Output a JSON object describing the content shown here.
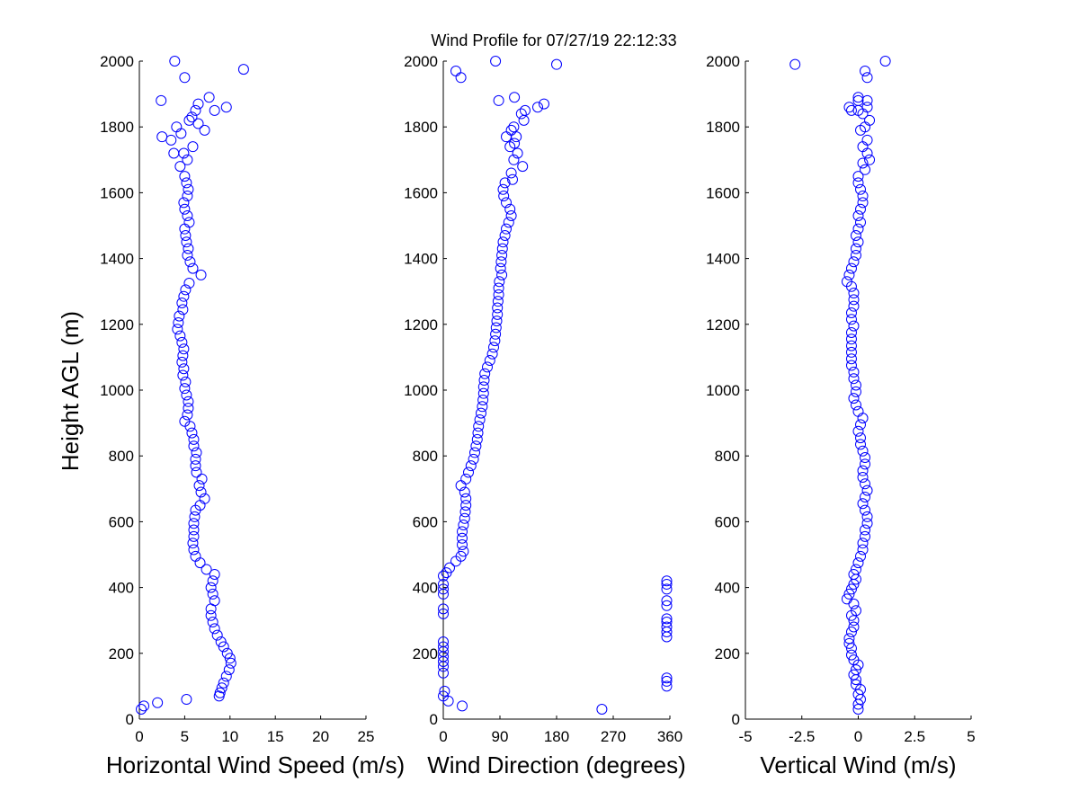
{
  "title": "Wind Profile for  07/27/19 22:12:33",
  "colors": {
    "marker": "#0000ff",
    "axis": "#000000",
    "background": "#ffffff"
  },
  "chart_data": [
    {
      "type": "scatter",
      "xlabel": "Horizontal Wind Speed (m/s)",
      "ylabel": "Height AGL (m)",
      "xlim": [
        0,
        25
      ],
      "ylim": [
        0,
        2000
      ],
      "xticks": [
        "0",
        "5",
        "10",
        "15",
        "20",
        "25"
      ],
      "yticks": [
        "0",
        "200",
        "400",
        "600",
        "800",
        "1000",
        "1200",
        "1400",
        "1600",
        "1800",
        "2000"
      ],
      "points": [
        [
          0.2,
          30
        ],
        [
          0.5,
          40
        ],
        [
          2.0,
          50
        ],
        [
          5.2,
          60
        ],
        [
          8.8,
          70
        ],
        [
          8.9,
          80
        ],
        [
          9.1,
          95
        ],
        [
          9.3,
          110
        ],
        [
          9.6,
          130
        ],
        [
          9.9,
          150
        ],
        [
          10.1,
          170
        ],
        [
          10.0,
          185
        ],
        [
          9.7,
          200
        ],
        [
          9.3,
          220
        ],
        [
          9.0,
          235
        ],
        [
          8.6,
          255
        ],
        [
          8.3,
          275
        ],
        [
          8.1,
          295
        ],
        [
          7.9,
          315
        ],
        [
          7.9,
          335
        ],
        [
          8.3,
          360
        ],
        [
          8.1,
          380
        ],
        [
          7.9,
          400
        ],
        [
          8.1,
          420
        ],
        [
          8.3,
          440
        ],
        [
          7.4,
          455
        ],
        [
          6.7,
          475
        ],
        [
          6.2,
          495
        ],
        [
          6.0,
          515
        ],
        [
          5.9,
          535
        ],
        [
          6.0,
          555
        ],
        [
          6.0,
          575
        ],
        [
          6.0,
          595
        ],
        [
          6.1,
          615
        ],
        [
          6.2,
          635
        ],
        [
          6.7,
          650
        ],
        [
          7.2,
          670
        ],
        [
          6.8,
          690
        ],
        [
          6.6,
          710
        ],
        [
          6.9,
          730
        ],
        [
          6.3,
          750
        ],
        [
          6.2,
          770
        ],
        [
          6.2,
          790
        ],
        [
          6.3,
          810
        ],
        [
          6.0,
          830
        ],
        [
          6.0,
          850
        ],
        [
          5.8,
          870
        ],
        [
          5.6,
          890
        ],
        [
          5.0,
          905
        ],
        [
          5.3,
          925
        ],
        [
          5.4,
          945
        ],
        [
          5.4,
          965
        ],
        [
          5.2,
          985
        ],
        [
          5.0,
          1005
        ],
        [
          5.1,
          1025
        ],
        [
          4.8,
          1045
        ],
        [
          4.9,
          1065
        ],
        [
          4.7,
          1085
        ],
        [
          4.8,
          1105
        ],
        [
          4.9,
          1125
        ],
        [
          4.7,
          1145
        ],
        [
          4.5,
          1165
        ],
        [
          4.2,
          1185
        ],
        [
          4.3,
          1205
        ],
        [
          4.4,
          1225
        ],
        [
          4.8,
          1245
        ],
        [
          4.7,
          1265
        ],
        [
          4.9,
          1285
        ],
        [
          5.1,
          1305
        ],
        [
          5.5,
          1325
        ],
        [
          6.8,
          1350
        ],
        [
          5.9,
          1370
        ],
        [
          5.6,
          1390
        ],
        [
          5.3,
          1410
        ],
        [
          5.4,
          1430
        ],
        [
          5.2,
          1450
        ],
        [
          5.1,
          1470
        ],
        [
          5.0,
          1490
        ],
        [
          5.5,
          1510
        ],
        [
          5.3,
          1530
        ],
        [
          5.0,
          1550
        ],
        [
          4.9,
          1570
        ],
        [
          5.3,
          1590
        ],
        [
          5.4,
          1610
        ],
        [
          5.2,
          1630
        ],
        [
          5.0,
          1650
        ],
        [
          4.5,
          1680
        ],
        [
          5.3,
          1700
        ],
        [
          4.9,
          1720
        ],
        [
          3.8,
          1720
        ],
        [
          3.5,
          1760
        ],
        [
          4.6,
          1780
        ],
        [
          4.1,
          1800
        ],
        [
          5.5,
          1820
        ],
        [
          6.5,
          1810
        ],
        [
          5.9,
          1740
        ],
        [
          2.5,
          1770
        ],
        [
          7.2,
          1790
        ],
        [
          5.8,
          1830
        ],
        [
          6.2,
          1850
        ],
        [
          8.3,
          1850
        ],
        [
          9.6,
          1860
        ],
        [
          7.7,
          1890
        ],
        [
          6.5,
          1870
        ],
        [
          2.4,
          1880
        ],
        [
          5.0,
          1950
        ],
        [
          3.9,
          2000
        ],
        [
          11.5,
          1975
        ]
      ]
    },
    {
      "type": "scatter",
      "xlabel": "Wind Direction (degrees)",
      "ylabel": "",
      "xlim": [
        0,
        360
      ],
      "ylim": [
        0,
        2000
      ],
      "xticks": [
        "0",
        "90",
        "180",
        "270",
        "360"
      ],
      "yticks": [
        "0",
        "200",
        "400",
        "600",
        "800",
        "1000",
        "1200",
        "1400",
        "1600",
        "1800",
        "2000"
      ],
      "points": [
        [
          30,
          40
        ],
        [
          8,
          55
        ],
        [
          0,
          70
        ],
        [
          2,
          85
        ],
        [
          252,
          30
        ],
        [
          355,
          100
        ],
        [
          355,
          115
        ],
        [
          355,
          125
        ],
        [
          0,
          140
        ],
        [
          0,
          160
        ],
        [
          0,
          175
        ],
        [
          0,
          190
        ],
        [
          0,
          205
        ],
        [
          0,
          220
        ],
        [
          0,
          235
        ],
        [
          0,
          320
        ],
        [
          0,
          335
        ],
        [
          0,
          380
        ],
        [
          0,
          395
        ],
        [
          0,
          410
        ],
        [
          355,
          250
        ],
        [
          355,
          265
        ],
        [
          355,
          280
        ],
        [
          355,
          295
        ],
        [
          355,
          305
        ],
        [
          355,
          345
        ],
        [
          355,
          360
        ],
        [
          355,
          395
        ],
        [
          355,
          410
        ],
        [
          355,
          420
        ],
        [
          0,
          435
        ],
        [
          5,
          445
        ],
        [
          10,
          460
        ],
        [
          20,
          480
        ],
        [
          28,
          495
        ],
        [
          32,
          510
        ],
        [
          30,
          530
        ],
        [
          30,
          550
        ],
        [
          30,
          570
        ],
        [
          32,
          590
        ],
        [
          34,
          610
        ],
        [
          35,
          630
        ],
        [
          36,
          650
        ],
        [
          36,
          670
        ],
        [
          34,
          690
        ],
        [
          28,
          710
        ],
        [
          36,
          730
        ],
        [
          40,
          750
        ],
        [
          44,
          770
        ],
        [
          48,
          790
        ],
        [
          50,
          810
        ],
        [
          52,
          830
        ],
        [
          54,
          850
        ],
        [
          55,
          870
        ],
        [
          56,
          890
        ],
        [
          58,
          910
        ],
        [
          60,
          930
        ],
        [
          62,
          950
        ],
        [
          63,
          970
        ],
        [
          64,
          990
        ],
        [
          64,
          1010
        ],
        [
          65,
          1030
        ],
        [
          66,
          1050
        ],
        [
          70,
          1070
        ],
        [
          74,
          1090
        ],
        [
          78,
          1110
        ],
        [
          80,
          1130
        ],
        [
          82,
          1150
        ],
        [
          83,
          1170
        ],
        [
          84,
          1190
        ],
        [
          85,
          1210
        ],
        [
          86,
          1230
        ],
        [
          86,
          1250
        ],
        [
          87,
          1270
        ],
        [
          88,
          1290
        ],
        [
          88,
          1310
        ],
        [
          89,
          1330
        ],
        [
          93,
          1350
        ],
        [
          91,
          1370
        ],
        [
          92,
          1390
        ],
        [
          93,
          1410
        ],
        [
          94,
          1430
        ],
        [
          95,
          1450
        ],
        [
          98,
          1470
        ],
        [
          100,
          1490
        ],
        [
          104,
          1510
        ],
        [
          108,
          1530
        ],
        [
          106,
          1550
        ],
        [
          100,
          1570
        ],
        [
          96,
          1590
        ],
        [
          95,
          1610
        ],
        [
          98,
          1630
        ],
        [
          110,
          1640
        ],
        [
          108,
          1660
        ],
        [
          126,
          1680
        ],
        [
          112,
          1700
        ],
        [
          118,
          1720
        ],
        [
          106,
          1740
        ],
        [
          113,
          1750
        ],
        [
          100,
          1770
        ],
        [
          116,
          1770
        ],
        [
          108,
          1790
        ],
        [
          112,
          1800
        ],
        [
          128,
          1820
        ],
        [
          124,
          1840
        ],
        [
          130,
          1850
        ],
        [
          150,
          1860
        ],
        [
          160,
          1870
        ],
        [
          88,
          1880
        ],
        [
          113,
          1890
        ],
        [
          20,
          1970
        ],
        [
          28,
          1950
        ],
        [
          83,
          2000
        ],
        [
          180,
          1990
        ]
      ]
    },
    {
      "type": "scatter",
      "xlabel": "Vertical Wind (m/s)",
      "ylabel": "",
      "xlim": [
        -5,
        5
      ],
      "ylim": [
        0,
        2000
      ],
      "xticks": [
        "-5",
        "-2.5",
        "0",
        "2.5",
        "5"
      ],
      "yticks": [
        "0",
        "200",
        "400",
        "600",
        "800",
        "1000",
        "1200",
        "1400",
        "1600",
        "1800",
        "2000"
      ],
      "points": [
        [
          0.0,
          30
        ],
        [
          0.0,
          45
        ],
        [
          0.1,
          60
        ],
        [
          0.0,
          75
        ],
        [
          0.1,
          90
        ],
        [
          -0.1,
          105
        ],
        [
          -0.1,
          120
        ],
        [
          -0.2,
          135
        ],
        [
          -0.1,
          150
        ],
        [
          0.0,
          165
        ],
        [
          -0.2,
          180
        ],
        [
          -0.3,
          195
        ],
        [
          -0.3,
          215
        ],
        [
          -0.4,
          230
        ],
        [
          -0.4,
          245
        ],
        [
          -0.3,
          265
        ],
        [
          -0.2,
          280
        ],
        [
          -0.2,
          300
        ],
        [
          -0.3,
          315
        ],
        [
          -0.1,
          330
        ],
        [
          -0.2,
          350
        ],
        [
          -0.5,
          365
        ],
        [
          -0.4,
          380
        ],
        [
          -0.3,
          395
        ],
        [
          -0.2,
          410
        ],
        [
          -0.1,
          425
        ],
        [
          -0.2,
          440
        ],
        [
          -0.1,
          455
        ],
        [
          0.0,
          475
        ],
        [
          0.1,
          495
        ],
        [
          0.2,
          515
        ],
        [
          0.2,
          535
        ],
        [
          0.3,
          555
        ],
        [
          0.3,
          575
        ],
        [
          0.4,
          595
        ],
        [
          0.4,
          615
        ],
        [
          0.3,
          635
        ],
        [
          0.2,
          655
        ],
        [
          0.3,
          675
        ],
        [
          0.4,
          695
        ],
        [
          0.3,
          715
        ],
        [
          0.2,
          735
        ],
        [
          0.2,
          755
        ],
        [
          0.3,
          775
        ],
        [
          0.3,
          795
        ],
        [
          0.2,
          815
        ],
        [
          0.1,
          835
        ],
        [
          0.1,
          855
        ],
        [
          0.0,
          875
        ],
        [
          0.1,
          895
        ],
        [
          0.2,
          915
        ],
        [
          0.0,
          935
        ],
        [
          -0.1,
          955
        ],
        [
          -0.2,
          975
        ],
        [
          -0.1,
          995
        ],
        [
          -0.1,
          1015
        ],
        [
          -0.2,
          1035
        ],
        [
          -0.2,
          1055
        ],
        [
          -0.3,
          1075
        ],
        [
          -0.3,
          1095
        ],
        [
          -0.3,
          1115
        ],
        [
          -0.3,
          1135
        ],
        [
          -0.3,
          1155
        ],
        [
          -0.3,
          1175
        ],
        [
          -0.2,
          1195
        ],
        [
          -0.3,
          1215
        ],
        [
          -0.3,
          1235
        ],
        [
          -0.2,
          1255
        ],
        [
          -0.2,
          1275
        ],
        [
          -0.2,
          1295
        ],
        [
          -0.3,
          1315
        ],
        [
          -0.5,
          1330
        ],
        [
          -0.4,
          1350
        ],
        [
          -0.3,
          1370
        ],
        [
          -0.2,
          1390
        ],
        [
          -0.1,
          1410
        ],
        [
          -0.1,
          1430
        ],
        [
          0.0,
          1450
        ],
        [
          -0.1,
          1470
        ],
        [
          0.0,
          1490
        ],
        [
          0.1,
          1510
        ],
        [
          0.0,
          1530
        ],
        [
          0.1,
          1550
        ],
        [
          0.2,
          1570
        ],
        [
          0.2,
          1590
        ],
        [
          0.1,
          1610
        ],
        [
          0.0,
          1630
        ],
        [
          0.0,
          1650
        ],
        [
          0.3,
          1670
        ],
        [
          0.2,
          1690
        ],
        [
          0.5,
          1700
        ],
        [
          0.4,
          1720
        ],
        [
          0.2,
          1740
        ],
        [
          0.4,
          1760
        ],
        [
          0.1,
          1790
        ],
        [
          0.3,
          1800
        ],
        [
          0.5,
          1820
        ],
        [
          0.2,
          1840
        ],
        [
          0.0,
          1850
        ],
        [
          -0.3,
          1850
        ],
        [
          -0.4,
          1860
        ],
        [
          0.4,
          1860
        ],
        [
          0.0,
          1880
        ],
        [
          0.4,
          1880
        ],
        [
          0.0,
          1890
        ],
        [
          0.4,
          1950
        ],
        [
          0.3,
          1970
        ],
        [
          -2.8,
          1990
        ],
        [
          1.2,
          2000
        ]
      ]
    }
  ]
}
